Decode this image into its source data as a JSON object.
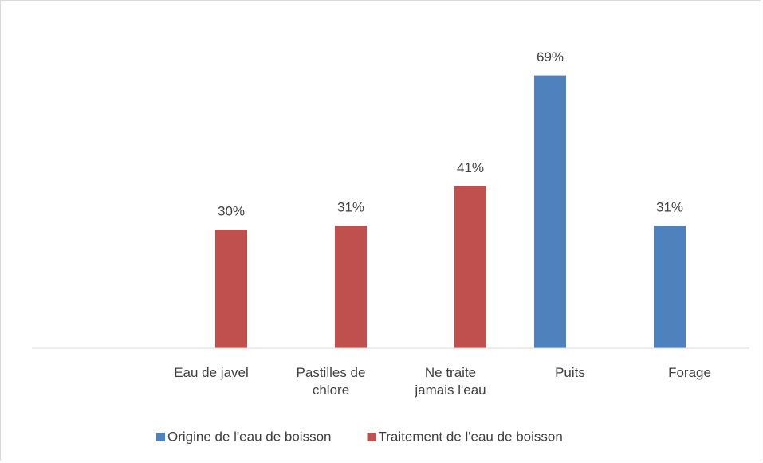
{
  "chart_data": {
    "type": "bar",
    "categories": [
      null,
      "Eau de javel",
      "Pastilles de chlore",
      "Ne traite jamais l'eau",
      "Puits",
      "Forage"
    ],
    "series": [
      {
        "name": "Origine de l'eau de boisson",
        "color": "#4f81bd",
        "values": [
          null,
          null,
          null,
          null,
          69,
          31
        ],
        "value_labels": [
          null,
          null,
          null,
          null,
          "69%",
          "31%"
        ]
      },
      {
        "name": "Traitement de l'eau de boisson",
        "color": "#c0504d",
        "values": [
          null,
          30,
          31,
          41,
          null,
          null
        ],
        "value_labels": [
          null,
          "30%",
          "31%",
          "41%",
          null,
          null
        ]
      }
    ],
    "ylim": [
      0,
      80
    ],
    "legend": "bottom"
  }
}
